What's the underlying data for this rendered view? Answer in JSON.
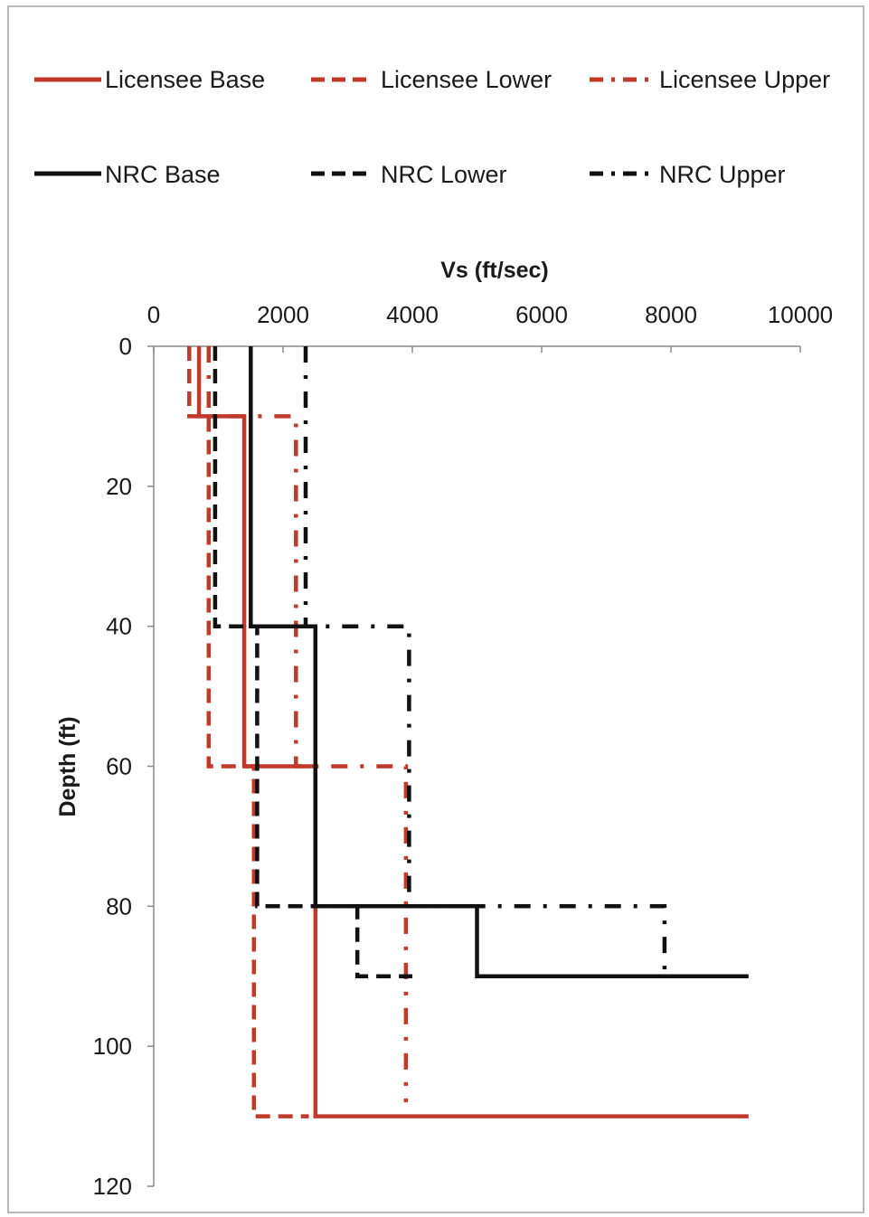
{
  "chart_data": {
    "type": "line",
    "xlabel": "Vs (ft/sec)",
    "ylabel": "Depth (ft)",
    "xlim": [
      0,
      10000
    ],
    "ylim": [
      0,
      120
    ],
    "y_reversed": true,
    "x_axis_position": "top",
    "x_ticks": [
      0,
      2000,
      4000,
      6000,
      8000,
      10000
    ],
    "y_ticks": [
      0,
      20,
      40,
      60,
      80,
      100,
      120
    ],
    "grid": false,
    "legend_position": "top",
    "series": [
      {
        "name": "Licensee Base",
        "color": "#c0392b",
        "dash": "solid",
        "points": [
          [
            700,
            0
          ],
          [
            700,
            10
          ],
          [
            1400,
            10
          ],
          [
            1400,
            60
          ],
          [
            2500,
            60
          ],
          [
            2500,
            110
          ],
          [
            9200,
            110
          ]
        ]
      },
      {
        "name": "Licensee Lower",
        "color": "#c0392b",
        "dash": "dashed",
        "points": [
          [
            550,
            0
          ],
          [
            550,
            10
          ],
          [
            850,
            10
          ],
          [
            850,
            60
          ],
          [
            1550,
            60
          ],
          [
            1550,
            110
          ],
          [
            2400,
            110
          ]
        ]
      },
      {
        "name": "Licensee Upper",
        "color": "#c0392b",
        "dash": "dashdot",
        "points": [
          [
            850,
            0
          ],
          [
            850,
            10
          ],
          [
            2200,
            10
          ],
          [
            2200,
            60
          ],
          [
            3900,
            60
          ],
          [
            3900,
            108
          ]
        ]
      },
      {
        "name": "NRC Base",
        "color": "#111111",
        "dash": "solid",
        "points": [
          [
            1500,
            0
          ],
          [
            1500,
            40
          ],
          [
            2500,
            40
          ],
          [
            2500,
            80
          ],
          [
            5000,
            80
          ],
          [
            5000,
            90
          ],
          [
            9200,
            90
          ]
        ]
      },
      {
        "name": "NRC Lower",
        "color": "#111111",
        "dash": "dashed",
        "points": [
          [
            950,
            0
          ],
          [
            950,
            40
          ],
          [
            1600,
            40
          ],
          [
            1600,
            80
          ],
          [
            3150,
            80
          ],
          [
            3150,
            90
          ],
          [
            4000,
            90
          ]
        ]
      },
      {
        "name": "NRC Upper",
        "color": "#111111",
        "dash": "dashdot",
        "points": [
          [
            2350,
            0
          ],
          [
            2350,
            40
          ],
          [
            3950,
            40
          ],
          [
            3950,
            80
          ],
          [
            7900,
            80
          ],
          [
            7900,
            90
          ]
        ]
      }
    ]
  }
}
